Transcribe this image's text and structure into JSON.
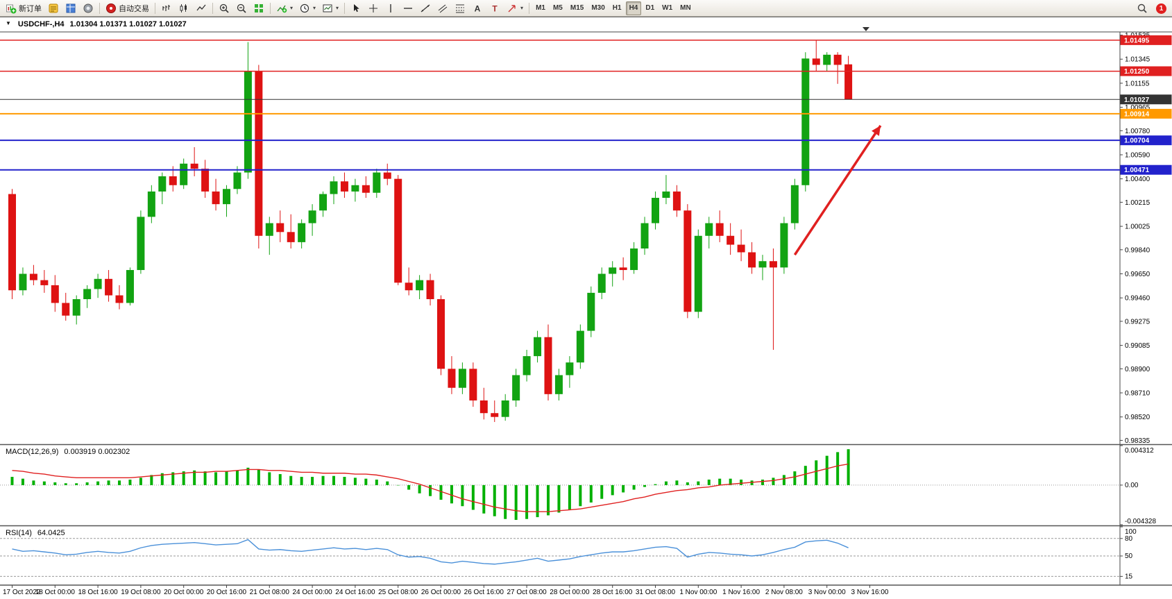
{
  "window": {
    "collapse_char": "▼",
    "symbol_period": "USDCHF-,H4",
    "ohlc": "1.01304 1.01371 1.01027 1.01027"
  },
  "toolbar": {
    "caret_char": "▾",
    "notification_count": "1",
    "active_timeframe": "H4",
    "timeframes": [
      "M1",
      "M5",
      "M15",
      "M30",
      "H1",
      "H4",
      "D1",
      "W1",
      "MN"
    ],
    "groups": [
      [
        {
          "name": "new-order",
          "icon": "neworder",
          "label": "新订单"
        },
        {
          "name": "metaeditor",
          "icon": "editor"
        },
        {
          "name": "market-watch",
          "icon": "watch"
        },
        {
          "name": "navigator",
          "icon": "navigator"
        }
      ],
      [
        {
          "name": "autotrading",
          "icon": "power",
          "label": "自动交易"
        }
      ],
      [
        {
          "name": "bar-chart",
          "icon": "bars"
        },
        {
          "name": "candle-chart",
          "icon": "candles"
        },
        {
          "name": "line-chart",
          "icon": "linechart"
        }
      ],
      [
        {
          "name": "zoom-in",
          "icon": "zoomin"
        },
        {
          "name": "zoom-out",
          "icon": "zoomout"
        },
        {
          "name": "tile-windows",
          "icon": "tile"
        }
      ],
      [
        {
          "name": "indicators",
          "icon": "indicator",
          "dropdown": true
        },
        {
          "name": "periods",
          "icon": "clock",
          "dropdown": true
        },
        {
          "name": "templates",
          "icon": "template",
          "dropdown": true
        }
      ],
      [
        {
          "name": "cursor",
          "icon": "cursor"
        },
        {
          "name": "crosshair",
          "icon": "crosshair"
        },
        {
          "name": "vertical-line",
          "icon": "vline"
        },
        {
          "name": "horizontal-line",
          "icon": "hline"
        },
        {
          "name": "trendline",
          "icon": "tline"
        },
        {
          "name": "equ-channel",
          "icon": "channel"
        },
        {
          "name": "fibonacci",
          "icon": "fibo"
        },
        {
          "name": "text",
          "icon": "texta"
        },
        {
          "name": "text-label",
          "icon": "textt"
        },
        {
          "name": "arrow-objects",
          "icon": "arrowtool",
          "dropdown": true
        }
      ]
    ]
  },
  "colors": {
    "bull": "#12a312",
    "bear": "#de1212",
    "macd_hist": "#00b000",
    "macd_signal": "#e02020",
    "rsi_line": "#4a90d9",
    "axis_text": "#000000"
  },
  "chart_data": [
    {
      "type": "candlestick",
      "symbol": "USDCHF-",
      "timeframe": "H4",
      "title": "USDCHF-,H4",
      "current_ohlc": {
        "open": 1.01304,
        "high": 1.01371,
        "low": 1.01027,
        "close": 1.01027
      },
      "ylim": [
        0.9831,
        1.0156
      ],
      "y_ticks": [
        "1.01535",
        "1.01345",
        "1.01155",
        "1.00965",
        "1.00780",
        "1.00590",
        "1.00400",
        "1.00215",
        "1.00025",
        "0.99840",
        "0.99650",
        "0.99460",
        "0.99275",
        "0.99085",
        "0.98900",
        "0.98710",
        "0.98520",
        "0.98335"
      ],
      "x_labels": [
        {
          "i": 0,
          "t": "17 Oct 2022"
        },
        {
          "i": 4,
          "t": "18 Oct 00:00"
        },
        {
          "i": 8,
          "t": "18 Oct 16:00"
        },
        {
          "i": 12,
          "t": "19 Oct 08:00"
        },
        {
          "i": 16,
          "t": "20 Oct 00:00"
        },
        {
          "i": 20,
          "t": "20 Oct 16:00"
        },
        {
          "i": 24,
          "t": "21 Oct 08:00"
        },
        {
          "i": 28,
          "t": "24 Oct 00:00"
        },
        {
          "i": 32,
          "t": "24 Oct 16:00"
        },
        {
          "i": 36,
          "t": "25 Oct 08:00"
        },
        {
          "i": 40,
          "t": "26 Oct 00:00"
        },
        {
          "i": 44,
          "t": "26 Oct 16:00"
        },
        {
          "i": 48,
          "t": "27 Oct 08:00"
        },
        {
          "i": 52,
          "t": "28 Oct 00:00"
        },
        {
          "i": 56,
          "t": "28 Oct 16:00"
        },
        {
          "i": 60,
          "t": "31 Oct 08:00"
        },
        {
          "i": 64,
          "t": "1 Nov 00:00"
        },
        {
          "i": 68,
          "t": "1 Nov 16:00"
        },
        {
          "i": 72,
          "t": "2 Nov 08:00"
        },
        {
          "i": 76,
          "t": "3 Nov 00:00"
        },
        {
          "i": 80,
          "t": "3 Nov 16:00"
        }
      ],
      "hlines": [
        {
          "price": 1.01495,
          "color": "#e02020",
          "tag": "1.01495",
          "width": 1.5
        },
        {
          "price": 1.0125,
          "color": "#e02020",
          "tag": "1.01250",
          "width": 1.5
        },
        {
          "price": 1.01027,
          "color": "#333333",
          "tag": "1.01027",
          "width": 1
        },
        {
          "price": 1.00914,
          "color": "#ff9900",
          "tag": "1.00914",
          "width": 2
        },
        {
          "price": 1.00704,
          "color": "#2222cc",
          "tag": "1.00704",
          "width": 2
        },
        {
          "price": 1.00471,
          "color": "#2222cc",
          "tag": "1.00471",
          "width": 2
        }
      ],
      "annotations": [
        {
          "type": "arrow",
          "from_i": 73,
          "from_price": 0.998,
          "to_i": 81,
          "to_price": 1.0082,
          "color": "#e02020"
        }
      ],
      "candles": [
        [
          1.0028,
          1.0032,
          0.9945,
          0.9952
        ],
        [
          0.9952,
          0.997,
          0.9948,
          0.9965
        ],
        [
          0.9965,
          0.9972,
          0.9956,
          0.996
        ],
        [
          0.996,
          0.9968,
          0.995,
          0.9956
        ],
        [
          0.9956,
          0.9964,
          0.9935,
          0.9942
        ],
        [
          0.9942,
          0.995,
          0.9928,
          0.9932
        ],
        [
          0.9932,
          0.9948,
          0.9925,
          0.9945
        ],
        [
          0.9945,
          0.9956,
          0.9938,
          0.9953
        ],
        [
          0.9953,
          0.9965,
          0.9946,
          0.9961
        ],
        [
          0.9961,
          0.9968,
          0.9943,
          0.9948
        ],
        [
          0.9948,
          0.9956,
          0.9937,
          0.9942
        ],
        [
          0.9942,
          0.997,
          0.994,
          0.9968
        ],
        [
          0.9968,
          1.0015,
          0.9965,
          1.001
        ],
        [
          1.001,
          1.0035,
          1.0005,
          1.003
        ],
        [
          1.003,
          1.0045,
          1.002,
          1.0042
        ],
        [
          1.0042,
          1.005,
          1.003,
          1.0035
        ],
        [
          1.0035,
          1.0056,
          1.0032,
          1.0052
        ],
        [
          1.0052,
          1.0065,
          1.0042,
          1.0048
        ],
        [
          1.0048,
          1.0055,
          1.0025,
          1.003
        ],
        [
          1.003,
          1.004,
          1.0015,
          1.002
        ],
        [
          1.002,
          1.0035,
          1.001,
          1.0032
        ],
        [
          1.0032,
          1.005,
          1.0028,
          1.0045
        ],
        [
          1.0045,
          1.0148,
          1.004,
          1.0125
        ],
        [
          1.0125,
          1.013,
          0.9985,
          0.9995
        ],
        [
          0.9995,
          1.001,
          0.998,
          1.0005
        ],
        [
          1.0005,
          1.0015,
          0.999,
          0.9998
        ],
        [
          0.9998,
          1.0012,
          0.9985,
          0.999
        ],
        [
          0.999,
          1.0008,
          0.9985,
          1.0005
        ],
        [
          1.0005,
          1.002,
          0.9995,
          1.0015
        ],
        [
          1.0015,
          1.003,
          1.001,
          1.0028
        ],
        [
          1.0028,
          1.0042,
          1.002,
          1.0038
        ],
        [
          1.0038,
          1.0045,
          1.0025,
          1.003
        ],
        [
          1.003,
          1.004,
          1.0022,
          1.0035
        ],
        [
          1.0035,
          1.0042,
          1.0025,
          1.0029
        ],
        [
          1.0029,
          1.0048,
          1.0025,
          1.0045
        ],
        [
          1.0045,
          1.0052,
          1.0035,
          1.004
        ],
        [
          1.004,
          1.0043,
          0.9956,
          0.9958
        ],
        [
          0.9958,
          0.997,
          0.9948,
          0.9952
        ],
        [
          0.9952,
          0.9964,
          0.9945,
          0.996
        ],
        [
          0.996,
          0.9965,
          0.994,
          0.9945
        ],
        [
          0.9945,
          0.9948,
          0.9885,
          0.989
        ],
        [
          0.989,
          0.99,
          0.987,
          0.9875
        ],
        [
          0.9875,
          0.9895,
          0.987,
          0.989
        ],
        [
          0.989,
          0.9895,
          0.986,
          0.9865
        ],
        [
          0.9865,
          0.9875,
          0.985,
          0.9855
        ],
        [
          0.9855,
          0.9865,
          0.9848,
          0.9852
        ],
        [
          0.9852,
          0.987,
          0.9849,
          0.9865
        ],
        [
          0.9865,
          0.989,
          0.986,
          0.9885
        ],
        [
          0.9885,
          0.9905,
          0.988,
          0.99
        ],
        [
          0.99,
          0.992,
          0.9895,
          0.9915
        ],
        [
          0.9915,
          0.9925,
          0.9865,
          0.987
        ],
        [
          0.987,
          0.989,
          0.9865,
          0.9885
        ],
        [
          0.9885,
          0.99,
          0.9875,
          0.9895
        ],
        [
          0.9895,
          0.9925,
          0.989,
          0.992
        ],
        [
          0.992,
          0.9955,
          0.9915,
          0.995
        ],
        [
          0.995,
          0.997,
          0.9945,
          0.9965
        ],
        [
          0.9965,
          0.9975,
          0.9955,
          0.997
        ],
        [
          0.997,
          0.9978,
          0.996,
          0.9968
        ],
        [
          0.9968,
          0.999,
          0.9965,
          0.9985
        ],
        [
          0.9985,
          1.001,
          0.998,
          1.0005
        ],
        [
          1.0005,
          1.003,
          1.0,
          1.0025
        ],
        [
          1.0025,
          1.0043,
          1.002,
          1.003
        ],
        [
          1.003,
          1.0035,
          1.001,
          1.0015
        ],
        [
          1.0015,
          1.002,
          0.993,
          0.9935
        ],
        [
          0.9935,
          1.0,
          0.993,
          0.9995
        ],
        [
          0.9995,
          1.001,
          0.9985,
          1.0005
        ],
        [
          1.0005,
          1.0015,
          0.999,
          0.9995
        ],
        [
          0.9995,
          1.0005,
          0.998,
          0.9988
        ],
        [
          0.9988,
          1.0,
          0.9975,
          0.9982
        ],
        [
          0.9982,
          0.999,
          0.9965,
          0.997
        ],
        [
          0.997,
          0.998,
          0.996,
          0.9975
        ],
        [
          0.9975,
          0.9985,
          0.9905,
          0.997
        ],
        [
          0.997,
          1.001,
          0.9965,
          1.0005
        ],
        [
          1.0005,
          1.004,
          1.0,
          1.0035
        ],
        [
          1.0035,
          1.014,
          1.003,
          1.0135
        ],
        [
          1.0135,
          1.01495,
          1.0125,
          1.013
        ],
        [
          1.013,
          1.014,
          1.0125,
          1.0138
        ],
        [
          1.0138,
          1.014,
          1.0115,
          1.013
        ],
        [
          1.01304,
          1.01371,
          1.01027,
          1.01027
        ]
      ]
    },
    {
      "type": "bar",
      "name": "MACD",
      "label": "MACD(12,26,9)",
      "values_text": "0.003919 0.002302",
      "ylim": [
        -0.004328,
        0.004312
      ],
      "scale": [
        {
          "v": 0.004312,
          "t": "0.004312"
        },
        {
          "v": 0.0,
          "t": "0.00"
        },
        {
          "v": -0.004328,
          "t": "-0.004328"
        }
      ],
      "histogram": [
        0.0009,
        0.0007,
        0.0005,
        0.0004,
        0.0003,
        0.0002,
        0.0002,
        0.0003,
        0.0004,
        0.0005,
        0.0005,
        0.0006,
        0.0008,
        0.0011,
        0.0013,
        0.0014,
        0.0015,
        0.0016,
        0.0015,
        0.0014,
        0.0015,
        0.0016,
        0.0019,
        0.0017,
        0.0014,
        0.0012,
        0.001,
        0.0009,
        0.0009,
        0.001,
        0.001,
        0.0009,
        0.0008,
        0.0007,
        0.0006,
        0.0004,
        0.0,
        -0.0005,
        -0.0009,
        -0.0012,
        -0.0016,
        -0.002,
        -0.0023,
        -0.0027,
        -0.0031,
        -0.0034,
        -0.0037,
        -0.0038,
        -0.0037,
        -0.0035,
        -0.0033,
        -0.003,
        -0.0027,
        -0.0023,
        -0.0019,
        -0.0015,
        -0.0011,
        -0.0008,
        -0.0005,
        -0.0002,
        0.0001,
        0.0004,
        0.0005,
        0.0003,
        0.0004,
        0.0006,
        0.0007,
        0.0007,
        0.0006,
        0.0005,
        0.0006,
        0.0008,
        0.0011,
        0.0015,
        0.0021,
        0.0027,
        0.0032,
        0.0036,
        0.003919
      ],
      "signal": [
        0.0016,
        0.0015,
        0.0013,
        0.0012,
        0.001,
        0.0009,
        0.0008,
        0.0008,
        0.0008,
        0.0008,
        0.0008,
        0.0008,
        0.0009,
        0.001,
        0.0011,
        0.0012,
        0.0013,
        0.0014,
        0.0014,
        0.0015,
        0.0015,
        0.0016,
        0.0017,
        0.0017,
        0.0016,
        0.0016,
        0.0015,
        0.0014,
        0.0014,
        0.0013,
        0.0013,
        0.0013,
        0.0012,
        0.0012,
        0.0011,
        0.0009,
        0.0007,
        0.0004,
        0.0001,
        -0.0003,
        -0.0007,
        -0.0011,
        -0.0015,
        -0.0018,
        -0.0021,
        -0.0024,
        -0.0026,
        -0.0028,
        -0.0029,
        -0.0029,
        -0.0029,
        -0.0028,
        -0.0027,
        -0.0026,
        -0.0024,
        -0.0022,
        -0.002,
        -0.0018,
        -0.0015,
        -0.0013,
        -0.001,
        -0.0008,
        -0.0006,
        -0.0005,
        -0.0003,
        -0.0002,
        0.0,
        0.0001,
        0.0002,
        0.0003,
        0.0004,
        0.0005,
        0.0007,
        0.0009,
        0.0012,
        0.0015,
        0.0018,
        0.0021,
        0.002302
      ]
    },
    {
      "type": "line",
      "name": "RSI",
      "label": "RSI(14)",
      "value_text": "64.0425",
      "ylim": [
        0,
        100
      ],
      "levels": [
        80,
        50,
        15
      ],
      "scale": [
        {
          "v": 100,
          "t": "100"
        },
        {
          "v": 80,
          "t": "80"
        },
        {
          "v": 50,
          "t": "50"
        },
        {
          "v": 15,
          "t": "15"
        }
      ],
      "values": [
        62,
        58,
        59,
        57,
        55,
        52,
        53,
        56,
        58,
        56,
        55,
        58,
        64,
        68,
        70,
        71,
        72,
        73,
        71,
        69,
        70,
        71,
        78,
        62,
        60,
        61,
        59,
        58,
        60,
        62,
        64,
        62,
        63,
        61,
        63,
        61,
        52,
        48,
        49,
        46,
        40,
        38,
        41,
        39,
        37,
        36,
        38,
        40,
        43,
        46,
        41,
        43,
        45,
        49,
        52,
        55,
        57,
        57,
        59,
        62,
        65,
        66,
        63,
        48,
        53,
        56,
        55,
        53,
        52,
        50,
        52,
        56,
        61,
        65,
        74,
        76,
        77,
        72,
        64.0425
      ]
    }
  ]
}
